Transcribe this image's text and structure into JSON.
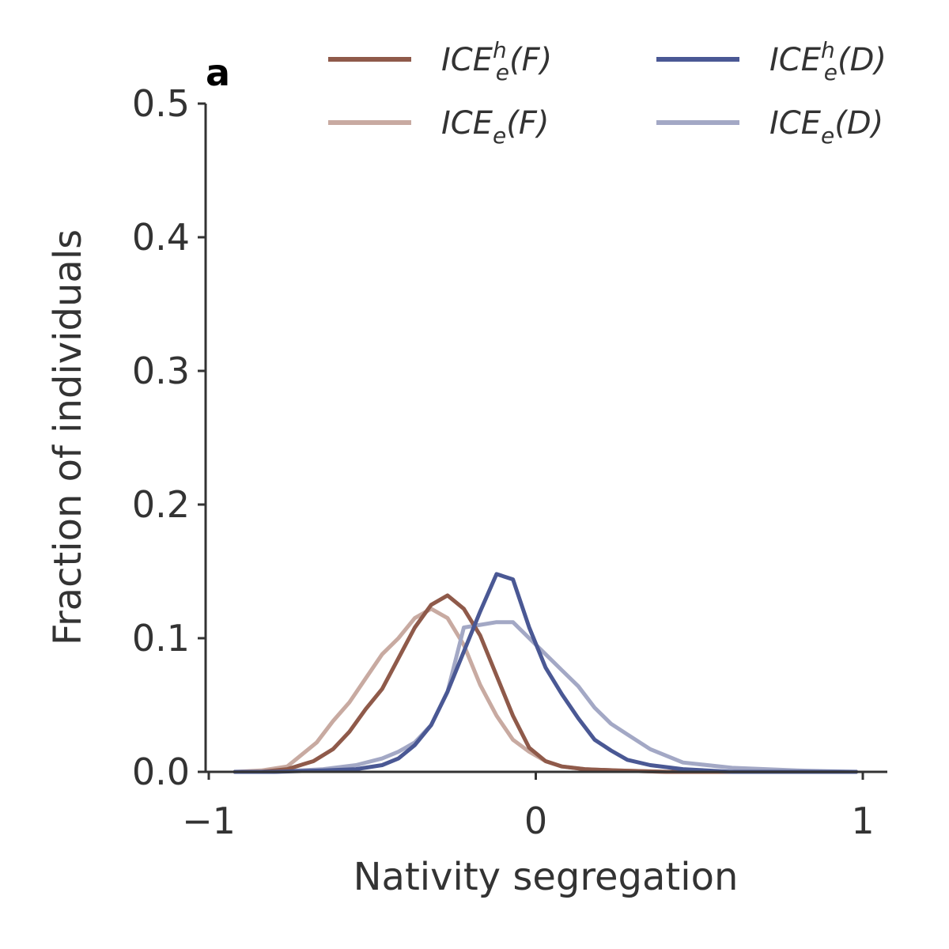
{
  "panel_label": "a",
  "chart_data": {
    "type": "line",
    "xlabel": "Nativity segregation",
    "ylabel": "Fraction of individuals",
    "xlim": [
      -1,
      1.07
    ],
    "ylim": [
      0,
      0.5
    ],
    "xticks": [
      -1,
      0,
      1
    ],
    "xtick_labels": [
      "−1",
      "0",
      "1"
    ],
    "yticks": [
      0,
      0.1,
      0.2,
      0.3,
      0.4,
      0.5
    ],
    "ytick_labels": [
      "0.0",
      "0.1",
      "0.2",
      "0.3",
      "0.4",
      "0.5"
    ],
    "grid": false,
    "legend_position": "top-right",
    "series": [
      {
        "key": "ice_h_f",
        "name_base": "ICE",
        "name_sup": "h",
        "name_sub": "e",
        "name_arg": "(F)",
        "color": "#8f5a4a",
        "opacity": 1,
        "x": [
          -0.92,
          -0.84,
          -0.76,
          -0.68,
          -0.62,
          -0.57,
          -0.52,
          -0.47,
          -0.42,
          -0.37,
          -0.32,
          -0.27,
          -0.22,
          -0.17,
          -0.12,
          -0.07,
          -0.02,
          0.03,
          0.08,
          0.15,
          0.25,
          0.4,
          0.6,
          0.8,
          0.98
        ],
        "y": [
          0,
          0,
          0.002,
          0.008,
          0.017,
          0.03,
          0.047,
          0.062,
          0.085,
          0.108,
          0.125,
          0.132,
          0.122,
          0.102,
          0.072,
          0.042,
          0.018,
          0.008,
          0.004,
          0.002,
          0.001,
          0,
          0,
          0,
          0
        ]
      },
      {
        "key": "ice_f",
        "name_base": "ICE",
        "name_sup": "",
        "name_sub": "e",
        "name_arg": "(F)",
        "color": "#c8aaa1",
        "opacity": 1,
        "x": [
          -0.92,
          -0.84,
          -0.76,
          -0.72,
          -0.67,
          -0.62,
          -0.57,
          -0.52,
          -0.47,
          -0.42,
          -0.37,
          -0.32,
          -0.27,
          -0.22,
          -0.17,
          -0.12,
          -0.07,
          -0.02,
          0.03,
          0.08,
          0.15,
          0.25,
          0.4,
          0.6,
          0.8,
          0.98
        ],
        "y": [
          0,
          0.001,
          0.004,
          0.012,
          0.022,
          0.038,
          0.052,
          0.07,
          0.088,
          0.1,
          0.115,
          0.122,
          0.115,
          0.095,
          0.065,
          0.042,
          0.024,
          0.015,
          0.008,
          0.004,
          0.002,
          0.001,
          0,
          0,
          0,
          0
        ]
      },
      {
        "key": "ice_h_d",
        "name_base": "ICE",
        "name_sup": "h",
        "name_sub": "e",
        "name_arg": "(D)",
        "color": "#4a5894",
        "opacity": 1,
        "x": [
          -0.92,
          -0.8,
          -0.65,
          -0.55,
          -0.47,
          -0.42,
          -0.37,
          -0.32,
          -0.27,
          -0.22,
          -0.17,
          -0.12,
          -0.07,
          -0.02,
          0.03,
          0.08,
          0.13,
          0.18,
          0.23,
          0.28,
          0.35,
          0.45,
          0.6,
          0.8,
          0.98
        ],
        "y": [
          0,
          0,
          0.001,
          0.002,
          0.005,
          0.01,
          0.02,
          0.035,
          0.06,
          0.09,
          0.12,
          0.148,
          0.144,
          0.108,
          0.078,
          0.058,
          0.04,
          0.024,
          0.016,
          0.009,
          0.005,
          0.002,
          0,
          0,
          0
        ]
      },
      {
        "key": "ice_d",
        "name_base": "ICE",
        "name_sup": "",
        "name_sub": "e",
        "name_arg": "(D)",
        "color": "#a3a8c5",
        "opacity": 1,
        "x": [
          -0.92,
          -0.8,
          -0.65,
          -0.55,
          -0.47,
          -0.42,
          -0.37,
          -0.32,
          -0.27,
          -0.22,
          -0.17,
          -0.12,
          -0.07,
          -0.02,
          0.03,
          0.08,
          0.13,
          0.18,
          0.23,
          0.28,
          0.35,
          0.45,
          0.6,
          0.8,
          0.98
        ],
        "y": [
          0,
          0,
          0.002,
          0.005,
          0.01,
          0.015,
          0.022,
          0.035,
          0.06,
          0.108,
          0.11,
          0.112,
          0.112,
          0.1,
          0.088,
          0.076,
          0.064,
          0.048,
          0.036,
          0.028,
          0.017,
          0.007,
          0.003,
          0.001,
          0
        ]
      }
    ]
  }
}
